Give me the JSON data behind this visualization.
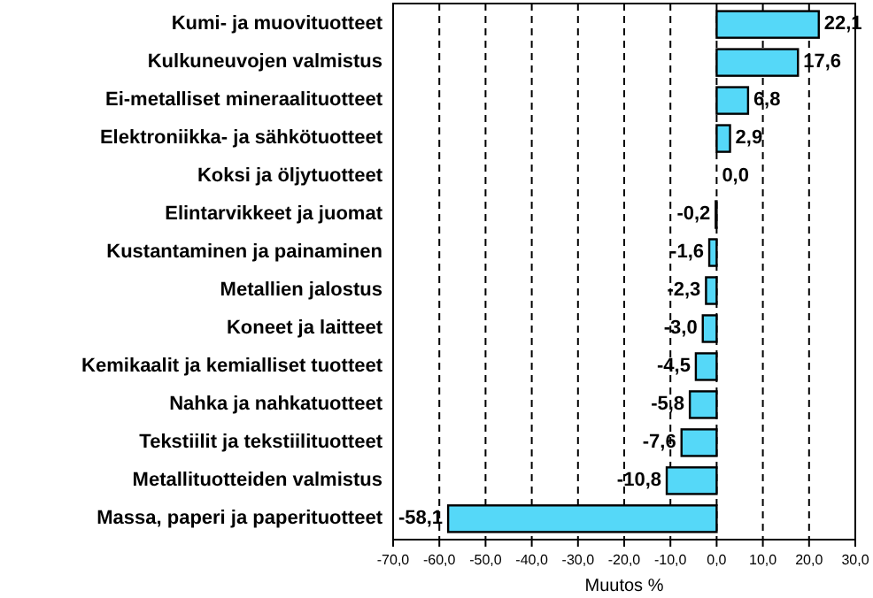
{
  "chart_data": {
    "type": "bar",
    "orientation": "horizontal",
    "xlabel": "Muutos %",
    "categories": [
      "Kumi- ja muovituotteet",
      "Kulkuneuvojen valmistus",
      "Ei-metalliset mineraalituotteet",
      "Elektroniikka- ja sähkötuotteet",
      "Koksi ja öljytuotteet",
      "Elintarvikkeet ja juomat",
      "Kustantaminen ja painaminen",
      "Metallien jalostus",
      "Koneet ja laitteet",
      "Kemikaalit ja kemialliset tuotteet",
      "Nahka ja nahkatuotteet",
      "Tekstiilit ja tekstiilituotteet",
      "Metallituotteiden valmistus",
      "Massa, paperi ja paperituotteet"
    ],
    "values": [
      22.1,
      17.6,
      6.8,
      2.9,
      0.0,
      -0.2,
      -1.6,
      -2.3,
      -3.0,
      -4.5,
      -5.8,
      -7.6,
      -10.8,
      -58.1
    ],
    "value_labels": [
      "22,1",
      "17,6",
      "6,8",
      "2,9",
      "0,0",
      "-0,2",
      "-1,6",
      "-2,3",
      "-3,0",
      "-4,5",
      "-5,8",
      "-7,6",
      "-10,8",
      "-58,1"
    ],
    "color": "#55d8f8",
    "xlim": [
      -70,
      30
    ],
    "xticks": [
      {
        "value": -70,
        "label": "-70,0"
      },
      {
        "value": -60,
        "label": "-60,0"
      },
      {
        "value": -50,
        "label": "-50,0"
      },
      {
        "value": -40,
        "label": "-40,0"
      },
      {
        "value": -30,
        "label": "-30,0"
      },
      {
        "value": -20,
        "label": "-20,0"
      },
      {
        "value": -10,
        "label": "-10,0"
      },
      {
        "value": 0,
        "label": "0,0"
      },
      {
        "value": 10,
        "label": "10,0"
      },
      {
        "value": 20,
        "label": "20,0"
      },
      {
        "value": 30,
        "label": "30,0"
      }
    ],
    "grid": "x"
  }
}
